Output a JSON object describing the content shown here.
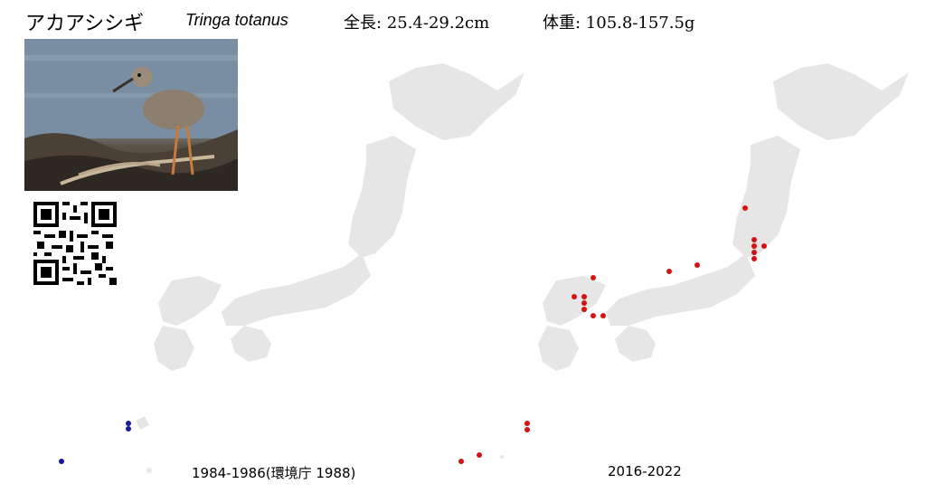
{
  "header": {
    "name_ja": "アカアシシギ",
    "name_scientific": "Tringa totanus",
    "length": "全長: 25.4-29.2cm",
    "weight": "体重: 105.8-157.5g"
  },
  "maps": {
    "left": {
      "caption": "1984-1986(環境庁 1988)",
      "dot_color": "#1a1aa0",
      "records": 3
    },
    "right": {
      "caption": "2016-2022",
      "dot_color": "#d41414",
      "records": 21
    }
  },
  "colors": {
    "land": "#e6e6e6"
  },
  "icons": {
    "photo": "bird-photo",
    "qr": "qr-code-icon"
  }
}
